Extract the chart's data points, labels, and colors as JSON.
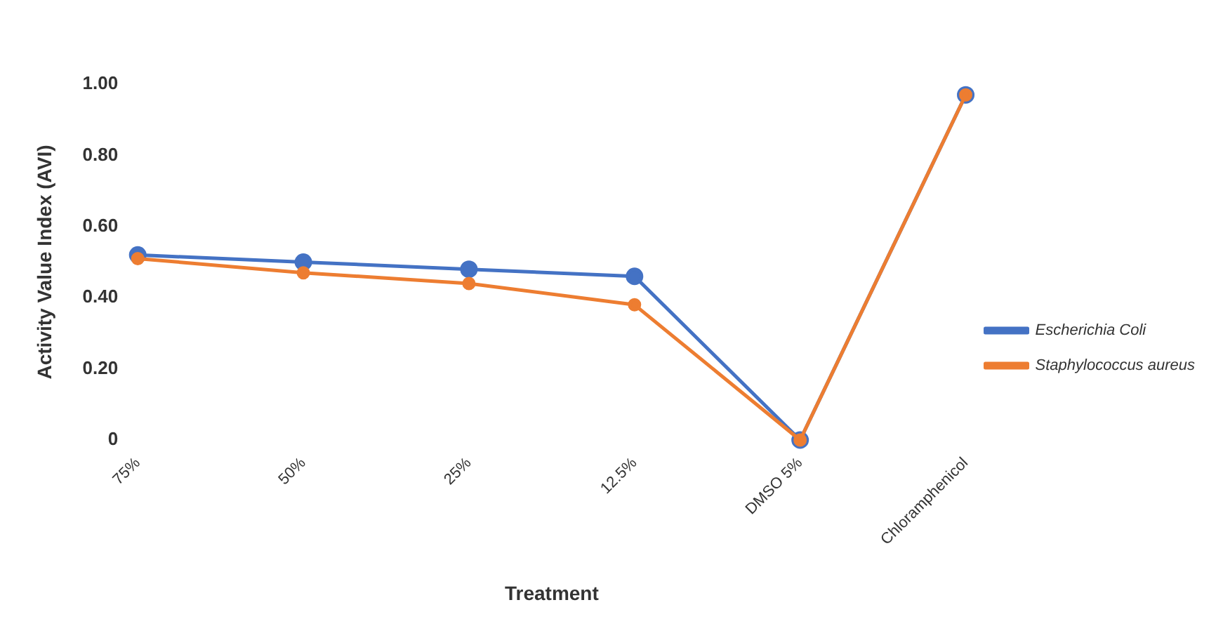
{
  "chart_data": {
    "type": "line",
    "xlabel": "Treatment",
    "ylabel": "Activity Value Index (AVI)",
    "categories": [
      "75%",
      "50%",
      "25%",
      "12.5%",
      "DMSO 5%",
      "Chloramphenicol"
    ],
    "series": [
      {
        "name": "Escherichia Coli",
        "color": "#4472c4",
        "values": [
          0.52,
          0.5,
          0.48,
          0.46,
          0,
          0.97
        ]
      },
      {
        "name": "Staphylococcus aureus",
        "color": "#ed7d31",
        "values": [
          0.51,
          0.47,
          0.44,
          0.38,
          0,
          0.97
        ]
      }
    ],
    "ylim": [
      0,
      1
    ],
    "yticks": [
      {
        "value": 0,
        "label": "0"
      },
      {
        "value": 0.2,
        "label": "0.20"
      },
      {
        "value": 0.4,
        "label": "0.40"
      },
      {
        "value": 0.6,
        "label": "0.60"
      },
      {
        "value": 0.8,
        "label": "0.80"
      },
      {
        "value": 1,
        "label": "1.00"
      }
    ],
    "grid": false,
    "legend": "right",
    "marker": "circle",
    "line_style": "solid"
  }
}
